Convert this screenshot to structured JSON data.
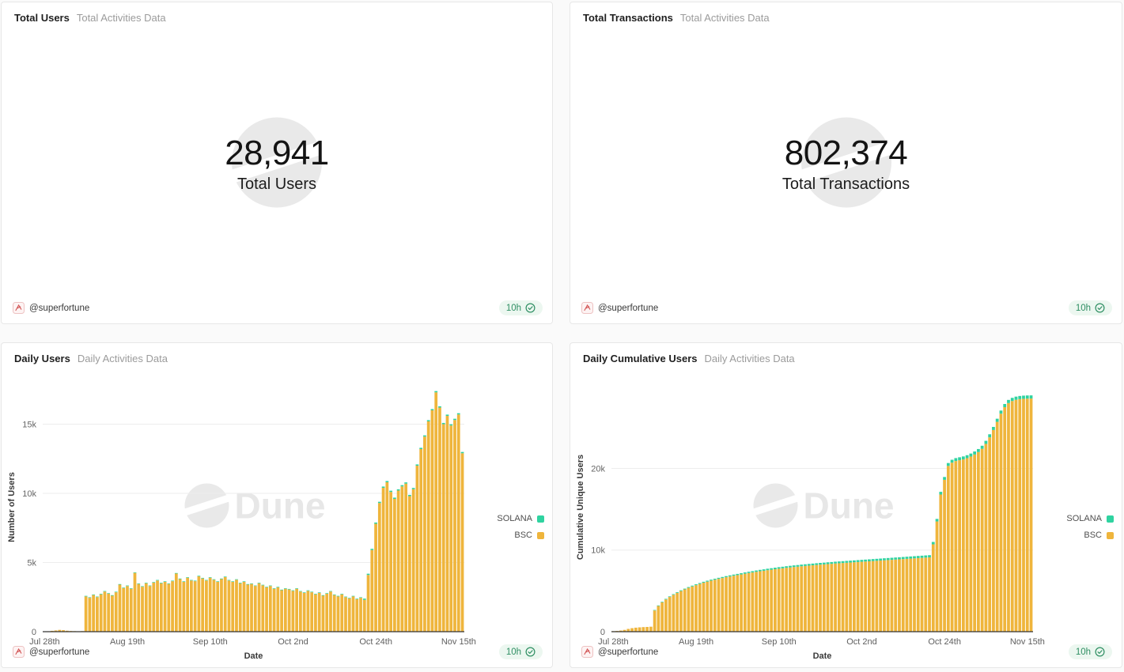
{
  "colors": {
    "bsc": "#efb53c",
    "solana": "#2fd3a0",
    "grid": "#ededed",
    "axis_line": "#333333",
    "tick_text": "#666666",
    "axis_title_text": "#3a3a3a",
    "watermark": "#e9e9e9",
    "badge_bg": "#ecf7f0",
    "badge_text": "#2f8f63"
  },
  "icons": {
    "verified_check": "check-in-circle",
    "dune_mark": "circle-with-swoosh",
    "author_logo": "superfortune-mark"
  },
  "panels": {
    "total_users": {
      "title": "Total Users",
      "subtitle": "Total Activities Data",
      "counter_value": "28,941",
      "counter_label": "Total Users",
      "footer": {
        "handle": "@superfortune",
        "badge": "10h"
      }
    },
    "total_transactions": {
      "title": "Total Transactions",
      "subtitle": "Total Activities Data",
      "counter_value": "802,374",
      "counter_label": "Total Transactions",
      "footer": {
        "handle": "@superfortune",
        "badge": "10h"
      }
    },
    "daily_users": {
      "title": "Daily Users",
      "subtitle": "Daily Activities Data",
      "footer": {
        "handle": "@superfortune",
        "badge": "10h"
      }
    },
    "daily_cumulative_users": {
      "title": "Daily Cumulative Users",
      "subtitle": "Daily Activities Data",
      "footer": {
        "handle": "@superfortune",
        "badge": "10h"
      }
    }
  },
  "watermark_text": "Dune",
  "chart_data": [
    {
      "type": "bar",
      "stacked": true,
      "title": "Daily Users",
      "xlabel": "Date",
      "ylabel": "Number of Users",
      "x_ticks": [
        "Jul 28th",
        "Aug 19th",
        "Sep 10th",
        "Oct 2nd",
        "Oct 24th",
        "Nov 15th"
      ],
      "x_tick_indices": [
        0,
        22,
        44,
        66,
        88,
        110
      ],
      "x_start_label": "Jul 28th",
      "y_ticks": [
        "0",
        "5k",
        "10k",
        "15k"
      ],
      "y_tick_values": [
        0,
        5000,
        10000,
        15000
      ],
      "ylim": [
        0,
        18000
      ],
      "grid": true,
      "legend": [
        "SOLANA",
        "BSC"
      ],
      "legend_position": "right",
      "series": [
        {
          "name": "BSC",
          "color": "#efb53c",
          "values": [
            20,
            30,
            60,
            90,
            130,
            110,
            70,
            50,
            40,
            30,
            40,
            2550,
            2450,
            2650,
            2500,
            2700,
            2900,
            2750,
            2600,
            2850,
            3400,
            3150,
            3300,
            3100,
            4250,
            3450,
            3250,
            3500,
            3300,
            3550,
            3700,
            3500,
            3600,
            3450,
            3650,
            4200,
            3800,
            3600,
            3900,
            3700,
            3650,
            4000,
            3850,
            3700,
            3900,
            3750,
            3600,
            3800,
            3950,
            3700,
            3600,
            3750,
            3500,
            3600,
            3400,
            3450,
            3300,
            3500,
            3350,
            3200,
            3300,
            3100,
            3200,
            3000,
            3100,
            3050,
            2950,
            3100,
            2900,
            2800,
            2950,
            2850,
            2700,
            2800,
            2600,
            2750,
            2900,
            2650,
            2550,
            2700,
            2500,
            2400,
            2550,
            2350,
            2450,
            2300,
            4100,
            5900,
            7800,
            9300,
            10400,
            10800,
            10100,
            9600,
            10200,
            10500,
            10700,
            9800,
            10300,
            12000,
            13200,
            14100,
            15200,
            16000,
            17300,
            16200,
            15000,
            15600,
            14900,
            15300,
            15700,
            12900
          ]
        },
        {
          "name": "SOLANA",
          "color": "#2fd3a0",
          "values": [
            0,
            0,
            0,
            0,
            0,
            0,
            0,
            0,
            0,
            0,
            0,
            40,
            40,
            40,
            40,
            40,
            40,
            40,
            40,
            40,
            40,
            40,
            40,
            40,
            40,
            40,
            40,
            40,
            40,
            40,
            40,
            40,
            40,
            40,
            40,
            40,
            40,
            40,
            40,
            40,
            40,
            40,
            40,
            40,
            40,
            40,
            40,
            40,
            40,
            40,
            40,
            40,
            40,
            40,
            40,
            40,
            40,
            40,
            40,
            40,
            40,
            40,
            40,
            40,
            40,
            40,
            40,
            40,
            40,
            40,
            40,
            40,
            40,
            40,
            40,
            40,
            40,
            40,
            40,
            40,
            40,
            40,
            40,
            40,
            40,
            90,
            90,
            90,
            90,
            90,
            90,
            90,
            90,
            90,
            90,
            90,
            90,
            90,
            90,
            90,
            90,
            90,
            90,
            90,
            90,
            90,
            90,
            90,
            90,
            90,
            90,
            90
          ]
        }
      ]
    },
    {
      "type": "bar",
      "stacked": true,
      "title": "Daily Cumulative Users",
      "xlabel": "Date",
      "ylabel": "Cumulative Unique Users",
      "x_ticks": [
        "Jul 28th",
        "Aug 19th",
        "Sep 10th",
        "Oct 2nd",
        "Oct 24th",
        "Nov 15th"
      ],
      "x_tick_indices": [
        0,
        22,
        44,
        66,
        88,
        110
      ],
      "x_start_label": "Jul 28th",
      "y_ticks": [
        "0",
        "10k",
        "20k"
      ],
      "y_tick_values": [
        0,
        10000,
        20000
      ],
      "ylim": [
        0,
        30500
      ],
      "grid": true,
      "legend": [
        "SOLANA",
        "BSC"
      ],
      "legend_position": "right",
      "series": [
        {
          "name": "BSC",
          "color": "#efb53c",
          "values": [
            60,
            90,
            140,
            220,
            340,
            430,
            490,
            530,
            560,
            580,
            610,
            2600,
            3150,
            3600,
            3950,
            4250,
            4520,
            4760,
            4980,
            5180,
            5370,
            5540,
            5700,
            5850,
            6000,
            6130,
            6250,
            6360,
            6470,
            6570,
            6670,
            6760,
            6850,
            6930,
            7010,
            7100,
            7180,
            7250,
            7330,
            7400,
            7460,
            7530,
            7590,
            7650,
            7710,
            7760,
            7820,
            7870,
            7920,
            7960,
            8010,
            8050,
            8090,
            8130,
            8170,
            8210,
            8240,
            8280,
            8310,
            8350,
            8380,
            8410,
            8440,
            8470,
            8500,
            8530,
            8560,
            8590,
            8620,
            8650,
            8680,
            8710,
            8740,
            8770,
            8800,
            8830,
            8860,
            8890,
            8920,
            8950,
            8980,
            9010,
            9040,
            9070,
            9100,
            10700,
            13500,
            16800,
            18600,
            20300,
            20700,
            20900,
            21000,
            21100,
            21250,
            21450,
            21700,
            22000,
            22400,
            23000,
            23800,
            24700,
            25700,
            26700,
            27500,
            28000,
            28250,
            28400,
            28480,
            28520,
            28540,
            28550
          ]
        },
        {
          "name": "SOLANA",
          "color": "#2fd3a0",
          "values": [
            0,
            0,
            0,
            5,
            8,
            10,
            12,
            14,
            15,
            16,
            16,
            60,
            64,
            68,
            72,
            76,
            80,
            84,
            88,
            92,
            96,
            100,
            104,
            108,
            112,
            116,
            120,
            124,
            128,
            132,
            136,
            140,
            144,
            148,
            152,
            156,
            160,
            164,
            168,
            172,
            176,
            180,
            184,
            188,
            192,
            194,
            196,
            198,
            200,
            202,
            204,
            206,
            208,
            210,
            212,
            214,
            216,
            218,
            220,
            222,
            224,
            226,
            228,
            230,
            232,
            234,
            236,
            238,
            240,
            242,
            244,
            246,
            248,
            250,
            252,
            254,
            256,
            258,
            260,
            262,
            264,
            266,
            268,
            270,
            272,
            290,
            310,
            330,
            345,
            355,
            357,
            359,
            361,
            363,
            365,
            367,
            369,
            371,
            373,
            375,
            377,
            379,
            381,
            383,
            385,
            386,
            387,
            388,
            389,
            390,
            391,
            391
          ]
        }
      ]
    }
  ]
}
